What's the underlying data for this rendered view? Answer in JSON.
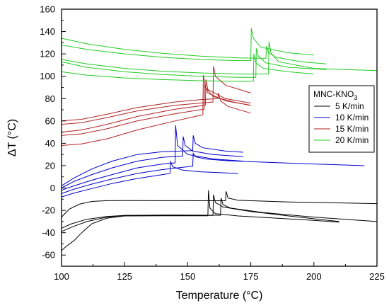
{
  "chart_data": {
    "type": "line",
    "xlabel": "Temperature (°C)",
    "ylabel": "ΔT (°C)",
    "xlim": [
      100,
      225
    ],
    "ylim": [
      -70,
      160
    ],
    "xticks": [
      100,
      125,
      150,
      175,
      200,
      225
    ],
    "yticks": [
      -60,
      -40,
      -20,
      0,
      20,
      40,
      60,
      80,
      100,
      120,
      140,
      160
    ],
    "grid": false,
    "legend": {
      "placement": "right",
      "title": "MNC-KNO",
      "title_subscript": "3",
      "entries": [
        {
          "label": "5 K/min",
          "color": "#000000"
        },
        {
          "label": "10 K/min",
          "color": "#0000cc"
        },
        {
          "label": "15 K/min",
          "color": "#b22222"
        },
        {
          "label": "20 K/min",
          "color": "#22cc22"
        }
      ]
    },
    "series": [
      {
        "group": 0,
        "color": "#000000",
        "x": [
          100,
          102,
          105,
          108,
          112,
          118,
          125,
          140,
          155,
          158,
          158.2,
          158.8,
          161,
          170,
          185,
          200,
          210
        ],
        "y": [
          -56,
          -52,
          -47,
          -40,
          -32,
          -27,
          -25,
          -24.8,
          -24.8,
          -24.8,
          -2,
          -18,
          -23,
          -25,
          -27,
          -29,
          -30.5
        ]
      },
      {
        "group": 0,
        "color": "#000000",
        "x": [
          100,
          104,
          110,
          118,
          125,
          140,
          160,
          163,
          163.2,
          164,
          167,
          180,
          200,
          225
        ],
        "y": [
          -39,
          -35,
          -30,
          -26,
          -24.5,
          -24.2,
          -24.4,
          -24.4,
          -9,
          -15,
          -18,
          -22,
          -26,
          -30
        ]
      },
      {
        "group": 0,
        "color": "#000000",
        "x": [
          100,
          104,
          110,
          118,
          125,
          140,
          159,
          160,
          160.2,
          161,
          164,
          175,
          190,
          210
        ],
        "y": [
          -36,
          -32,
          -28,
          -25.5,
          -24.5,
          -24.5,
          -24.6,
          -24.6,
          -6,
          -13,
          -17,
          -21,
          -25,
          -30
        ]
      },
      {
        "group": 0,
        "color": "#000000",
        "x": [
          100,
          103,
          107,
          112,
          118,
          125,
          140,
          160,
          165,
          165.2,
          166,
          170,
          190,
          225
        ],
        "y": [
          -26,
          -19,
          -14.5,
          -12,
          -11.3,
          -11.2,
          -11.3,
          -11.4,
          -11.4,
          -3,
          -9,
          -11,
          -12.5,
          -14
        ]
      },
      {
        "group": 1,
        "color": "#0000cc",
        "x": [
          100,
          105,
          112,
          120,
          130,
          140,
          143,
          143.2,
          144,
          148,
          155,
          170
        ],
        "y": [
          -8,
          -4.5,
          -0.5,
          4,
          8.5,
          12,
          13,
          24,
          19,
          16,
          14.5,
          13
        ]
      },
      {
        "group": 1,
        "color": "#0000cc",
        "x": [
          100,
          105,
          112,
          120,
          130,
          140,
          150,
          152,
          152.2,
          153,
          157,
          165,
          175,
          200,
          220
        ],
        "y": [
          -5,
          -1,
          3.5,
          8,
          13,
          16.5,
          19,
          19.5,
          31,
          28,
          26,
          24.5,
          23.5,
          21.5,
          20
        ]
      },
      {
        "group": 1,
        "color": "#0000cc",
        "x": [
          100,
          105,
          112,
          120,
          130,
          140,
          145,
          145.2,
          146,
          150,
          160,
          172
        ],
        "y": [
          -2,
          2,
          7,
          12,
          18,
          21.5,
          22.5,
          56,
          38,
          30,
          26,
          24
        ]
      },
      {
        "group": 1,
        "color": "#0000cc",
        "x": [
          100,
          105,
          112,
          120,
          130,
          140,
          148,
          148.2,
          149,
          152,
          160,
          172
        ],
        "y": [
          0,
          6,
          12,
          18,
          24,
          27.5,
          28.5,
          46,
          38,
          33,
          30,
          28
        ]
      },
      {
        "group": 1,
        "color": "#0000cc",
        "x": [
          100,
          105,
          112,
          120,
          130,
          140,
          152,
          152.2,
          153,
          156,
          165,
          172
        ],
        "y": [
          2,
          9,
          17,
          24,
          30,
          32.5,
          33.5,
          47,
          40,
          36,
          33,
          32
        ]
      },
      {
        "group": 2,
        "color": "#b22222",
        "x": [
          100,
          108,
          118,
          130,
          145,
          155,
          156,
          156.2,
          157,
          160,
          168,
          175
        ],
        "y": [
          38,
          39.5,
          44,
          52,
          60,
          65,
          65.5,
          101,
          90,
          82,
          77,
          74
        ]
      },
      {
        "group": 2,
        "color": "#b22222",
        "x": [
          100,
          108,
          118,
          130,
          145,
          155,
          156.5,
          156.7,
          158,
          165,
          175
        ],
        "y": [
          47,
          48.5,
          53,
          60,
          66.5,
          70,
          70.5,
          92,
          85,
          78,
          74
        ]
      },
      {
        "group": 2,
        "color": "#b22222",
        "x": [
          100,
          108,
          118,
          130,
          145,
          155,
          157,
          157.2,
          158,
          165,
          175
        ],
        "y": [
          50,
          52,
          57,
          64,
          70.5,
          73.5,
          74,
          97,
          88,
          80,
          76
        ]
      },
      {
        "group": 2,
        "color": "#b22222",
        "x": [
          100,
          108,
          118,
          130,
          145,
          160,
          160.2,
          161,
          165,
          175
        ],
        "y": [
          57,
          58.5,
          63,
          69,
          74,
          77,
          109,
          100,
          92,
          85
        ]
      },
      {
        "group": 2,
        "color": "#b22222",
        "x": [
          100,
          108,
          118,
          130,
          145,
          155,
          162,
          162.2,
          163,
          166,
          175
        ],
        "y": [
          60,
          61.5,
          66,
          72,
          77,
          79,
          80,
          85,
          78,
          73,
          67
        ]
      },
      {
        "group": 3,
        "color": "#22cc22",
        "x": [
          100,
          110,
          125,
          140,
          155,
          168,
          176,
          176.2,
          177,
          180,
          190,
          200
        ],
        "y": [
          104,
          101,
          98.5,
          97,
          96,
          95.5,
          95.5,
          120,
          112,
          107,
          104,
          102
        ]
      },
      {
        "group": 3,
        "color": "#22cc22",
        "x": [
          100,
          110,
          125,
          140,
          155,
          170,
          177,
          177.2,
          178,
          181,
          190,
          205
        ],
        "y": [
          113,
          108,
          104,
          101.5,
          100,
          99,
          99,
          125,
          118,
          112,
          108,
          106
        ]
      },
      {
        "group": 3,
        "color": "#22cc22",
        "x": [
          100,
          110,
          125,
          140,
          155,
          170,
          182,
          182.2,
          183,
          186,
          200,
          225
        ],
        "y": [
          115,
          111,
          107,
          104.5,
          103,
          102,
          102,
          131,
          121,
          113,
          107,
          105
        ]
      },
      {
        "group": 3,
        "color": "#22cc22",
        "x": [
          100,
          110,
          125,
          140,
          155,
          170,
          175,
          175.2,
          176,
          179,
          190,
          200
        ],
        "y": [
          128,
          124,
          120,
          117,
          115,
          114,
          114,
          143,
          134,
          126,
          121,
          119
        ]
      },
      {
        "group": 3,
        "color": "#22cc22",
        "x": [
          100,
          110,
          125,
          140,
          155,
          170,
          181,
          181.2,
          182,
          185,
          195,
          205
        ],
        "y": [
          134,
          129,
          124,
          120.5,
          118,
          116.5,
          116,
          127,
          121,
          117,
          113,
          111
        ]
      }
    ]
  }
}
